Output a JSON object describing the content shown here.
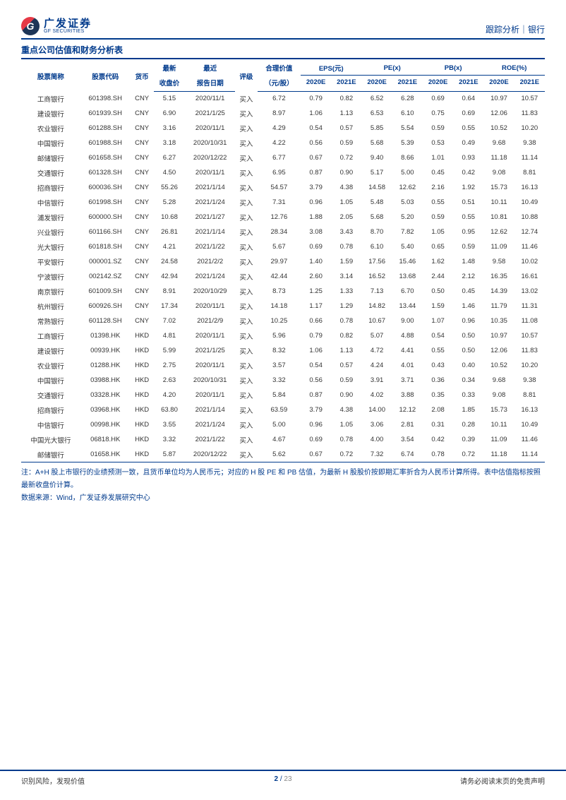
{
  "header": {
    "logo_glyph": "G",
    "logo_cn": "广发证券",
    "logo_en": "GF SECURITIES",
    "breadcrumb": "跟踪分析｜银行"
  },
  "title": "重点公司估值和财务分析表",
  "table": {
    "columns_top": {
      "name": "股票简称",
      "code": "股票代码",
      "ccy": "货币",
      "price": "最新",
      "date": "最近",
      "rating": "评级",
      "fair": "合理价值",
      "eps": "EPS(元)",
      "pe": "PE(x)",
      "pb": "PB(x)",
      "roe": "ROE(%)"
    },
    "columns_bot": {
      "price": "收盘价",
      "date": "报告日期",
      "fair": "（元/股）",
      "y1": "2020E",
      "y2": "2021E"
    },
    "rows": [
      {
        "name": "工商银行",
        "code": "601398.SH",
        "ccy": "CNY",
        "price": "5.15",
        "date": "2020/11/1",
        "rating": "买入",
        "fair": "6.72",
        "eps1": "0.79",
        "eps2": "0.82",
        "pe1": "6.52",
        "pe2": "6.28",
        "pb1": "0.69",
        "pb2": "0.64",
        "roe1": "10.97",
        "roe2": "10.57"
      },
      {
        "name": "建设银行",
        "code": "601939.SH",
        "ccy": "CNY",
        "price": "6.90",
        "date": "2021/1/25",
        "rating": "买入",
        "fair": "8.97",
        "eps1": "1.06",
        "eps2": "1.13",
        "pe1": "6.53",
        "pe2": "6.10",
        "pb1": "0.75",
        "pb2": "0.69",
        "roe1": "12.06",
        "roe2": "11.83"
      },
      {
        "name": "农业银行",
        "code": "601288.SH",
        "ccy": "CNY",
        "price": "3.16",
        "date": "2020/11/1",
        "rating": "买入",
        "fair": "4.29",
        "eps1": "0.54",
        "eps2": "0.57",
        "pe1": "5.85",
        "pe2": "5.54",
        "pb1": "0.59",
        "pb2": "0.55",
        "roe1": "10.52",
        "roe2": "10.20"
      },
      {
        "name": "中国银行",
        "code": "601988.SH",
        "ccy": "CNY",
        "price": "3.18",
        "date": "2020/10/31",
        "rating": "买入",
        "fair": "4.22",
        "eps1": "0.56",
        "eps2": "0.59",
        "pe1": "5.68",
        "pe2": "5.39",
        "pb1": "0.53",
        "pb2": "0.49",
        "roe1": "9.68",
        "roe2": "9.38"
      },
      {
        "name": "邮储银行",
        "code": "601658.SH",
        "ccy": "CNY",
        "price": "6.27",
        "date": "2020/12/22",
        "rating": "买入",
        "fair": "6.77",
        "eps1": "0.67",
        "eps2": "0.72",
        "pe1": "9.40",
        "pe2": "8.66",
        "pb1": "1.01",
        "pb2": "0.93",
        "roe1": "11.18",
        "roe2": "11.14"
      },
      {
        "name": "交通银行",
        "code": "601328.SH",
        "ccy": "CNY",
        "price": "4.50",
        "date": "2020/11/1",
        "rating": "买入",
        "fair": "6.95",
        "eps1": "0.87",
        "eps2": "0.90",
        "pe1": "5.17",
        "pe2": "5.00",
        "pb1": "0.45",
        "pb2": "0.42",
        "roe1": "9.08",
        "roe2": "8.81"
      },
      {
        "name": "招商银行",
        "code": "600036.SH",
        "ccy": "CNY",
        "price": "55.26",
        "date": "2021/1/14",
        "rating": "买入",
        "fair": "54.57",
        "eps1": "3.79",
        "eps2": "4.38",
        "pe1": "14.58",
        "pe2": "12.62",
        "pb1": "2.16",
        "pb2": "1.92",
        "roe1": "15.73",
        "roe2": "16.13"
      },
      {
        "name": "中信银行",
        "code": "601998.SH",
        "ccy": "CNY",
        "price": "5.28",
        "date": "2021/1/24",
        "rating": "买入",
        "fair": "7.31",
        "eps1": "0.96",
        "eps2": "1.05",
        "pe1": "5.48",
        "pe2": "5.03",
        "pb1": "0.55",
        "pb2": "0.51",
        "roe1": "10.11",
        "roe2": "10.49"
      },
      {
        "name": "浦发银行",
        "code": "600000.SH",
        "ccy": "CNY",
        "price": "10.68",
        "date": "2021/1/27",
        "rating": "买入",
        "fair": "12.76",
        "eps1": "1.88",
        "eps2": "2.05",
        "pe1": "5.68",
        "pe2": "5.20",
        "pb1": "0.59",
        "pb2": "0.55",
        "roe1": "10.81",
        "roe2": "10.88"
      },
      {
        "name": "兴业银行",
        "code": "601166.SH",
        "ccy": "CNY",
        "price": "26.81",
        "date": "2021/1/14",
        "rating": "买入",
        "fair": "28.34",
        "eps1": "3.08",
        "eps2": "3.43",
        "pe1": "8.70",
        "pe2": "7.82",
        "pb1": "1.05",
        "pb2": "0.95",
        "roe1": "12.62",
        "roe2": "12.74"
      },
      {
        "name": "光大银行",
        "code": "601818.SH",
        "ccy": "CNY",
        "price": "4.21",
        "date": "2021/1/22",
        "rating": "买入",
        "fair": "5.67",
        "eps1": "0.69",
        "eps2": "0.78",
        "pe1": "6.10",
        "pe2": "5.40",
        "pb1": "0.65",
        "pb2": "0.59",
        "roe1": "11.09",
        "roe2": "11.46"
      },
      {
        "name": "平安银行",
        "code": "000001.SZ",
        "ccy": "CNY",
        "price": "24.58",
        "date": "2021/2/2",
        "rating": "买入",
        "fair": "29.97",
        "eps1": "1.40",
        "eps2": "1.59",
        "pe1": "17.56",
        "pe2": "15.46",
        "pb1": "1.62",
        "pb2": "1.48",
        "roe1": "9.58",
        "roe2": "10.02"
      },
      {
        "name": "宁波银行",
        "code": "002142.SZ",
        "ccy": "CNY",
        "price": "42.94",
        "date": "2021/1/24",
        "rating": "买入",
        "fair": "42.44",
        "eps1": "2.60",
        "eps2": "3.14",
        "pe1": "16.52",
        "pe2": "13.68",
        "pb1": "2.44",
        "pb2": "2.12",
        "roe1": "16.35",
        "roe2": "16.61"
      },
      {
        "name": "南京银行",
        "code": "601009.SH",
        "ccy": "CNY",
        "price": "8.91",
        "date": "2020/10/29",
        "rating": "买入",
        "fair": "8.73",
        "eps1": "1.25",
        "eps2": "1.33",
        "pe1": "7.13",
        "pe2": "6.70",
        "pb1": "0.50",
        "pb2": "0.45",
        "roe1": "14.39",
        "roe2": "13.02"
      },
      {
        "name": "杭州银行",
        "code": "600926.SH",
        "ccy": "CNY",
        "price": "17.34",
        "date": "2020/11/1",
        "rating": "买入",
        "fair": "14.18",
        "eps1": "1.17",
        "eps2": "1.29",
        "pe1": "14.82",
        "pe2": "13.44",
        "pb1": "1.59",
        "pb2": "1.46",
        "roe1": "11.79",
        "roe2": "11.31"
      },
      {
        "name": "常熟银行",
        "code": "601128.SH",
        "ccy": "CNY",
        "price": "7.02",
        "date": "2021/2/9",
        "rating": "买入",
        "fair": "10.25",
        "eps1": "0.66",
        "eps2": "0.78",
        "pe1": "10.67",
        "pe2": "9.00",
        "pb1": "1.07",
        "pb2": "0.96",
        "roe1": "10.35",
        "roe2": "11.08"
      },
      {
        "name": "工商银行",
        "code": "01398.HK",
        "ccy": "HKD",
        "price": "4.81",
        "date": "2020/11/1",
        "rating": "买入",
        "fair": "5.96",
        "eps1": "0.79",
        "eps2": "0.82",
        "pe1": "5.07",
        "pe2": "4.88",
        "pb1": "0.54",
        "pb2": "0.50",
        "roe1": "10.97",
        "roe2": "10.57"
      },
      {
        "name": "建设银行",
        "code": "00939.HK",
        "ccy": "HKD",
        "price": "5.99",
        "date": "2021/1/25",
        "rating": "买入",
        "fair": "8.32",
        "eps1": "1.06",
        "eps2": "1.13",
        "pe1": "4.72",
        "pe2": "4.41",
        "pb1": "0.55",
        "pb2": "0.50",
        "roe1": "12.06",
        "roe2": "11.83"
      },
      {
        "name": "农业银行",
        "code": "01288.HK",
        "ccy": "HKD",
        "price": "2.75",
        "date": "2020/11/1",
        "rating": "买入",
        "fair": "3.57",
        "eps1": "0.54",
        "eps2": "0.57",
        "pe1": "4.24",
        "pe2": "4.01",
        "pb1": "0.43",
        "pb2": "0.40",
        "roe1": "10.52",
        "roe2": "10.20"
      },
      {
        "name": "中国银行",
        "code": "03988.HK",
        "ccy": "HKD",
        "price": "2.63",
        "date": "2020/10/31",
        "rating": "买入",
        "fair": "3.32",
        "eps1": "0.56",
        "eps2": "0.59",
        "pe1": "3.91",
        "pe2": "3.71",
        "pb1": "0.36",
        "pb2": "0.34",
        "roe1": "9.68",
        "roe2": "9.38"
      },
      {
        "name": "交通银行",
        "code": "03328.HK",
        "ccy": "HKD",
        "price": "4.20",
        "date": "2020/11/1",
        "rating": "买入",
        "fair": "5.84",
        "eps1": "0.87",
        "eps2": "0.90",
        "pe1": "4.02",
        "pe2": "3.88",
        "pb1": "0.35",
        "pb2": "0.33",
        "roe1": "9.08",
        "roe2": "8.81"
      },
      {
        "name": "招商银行",
        "code": "03968.HK",
        "ccy": "HKD",
        "price": "63.80",
        "date": "2021/1/14",
        "rating": "买入",
        "fair": "63.59",
        "eps1": "3.79",
        "eps2": "4.38",
        "pe1": "14.00",
        "pe2": "12.12",
        "pb1": "2.08",
        "pb2": "1.85",
        "roe1": "15.73",
        "roe2": "16.13"
      },
      {
        "name": "中信银行",
        "code": "00998.HK",
        "ccy": "HKD",
        "price": "3.55",
        "date": "2021/1/24",
        "rating": "买入",
        "fair": "5.00",
        "eps1": "0.96",
        "eps2": "1.05",
        "pe1": "3.06",
        "pe2": "2.81",
        "pb1": "0.31",
        "pb2": "0.28",
        "roe1": "10.11",
        "roe2": "10.49"
      },
      {
        "name": "中国光大银行",
        "code": "06818.HK",
        "ccy": "HKD",
        "price": "3.32",
        "date": "2021/1/22",
        "rating": "买入",
        "fair": "4.67",
        "eps1": "0.69",
        "eps2": "0.78",
        "pe1": "4.00",
        "pe2": "3.54",
        "pb1": "0.42",
        "pb2": "0.39",
        "roe1": "11.09",
        "roe2": "11.46"
      },
      {
        "name": "邮储银行",
        "code": "01658.HK",
        "ccy": "HKD",
        "price": "5.87",
        "date": "2020/12/22",
        "rating": "买入",
        "fair": "5.62",
        "eps1": "0.67",
        "eps2": "0.72",
        "pe1": "7.32",
        "pe2": "6.74",
        "pb1": "0.78",
        "pb2": "0.72",
        "roe1": "11.18",
        "roe2": "11.14"
      }
    ]
  },
  "notes": {
    "line1": "注：A+H 股上市银行的业绩预测一致，且货币单位均为人民币元；对应的 H 股 PE 和 PB 估值，为最新 H 股股价按即期汇率折合为人民币计算所得。表中估值指标按照最新收盘价计算。",
    "line2": "数据来源：Wind，广发证券发展研究中心"
  },
  "footer": {
    "left": "识别风险，发现价值",
    "right": "请务必阅读末页的免责声明",
    "page_cur": "2",
    "page_sep": " / ",
    "page_total": "23"
  }
}
